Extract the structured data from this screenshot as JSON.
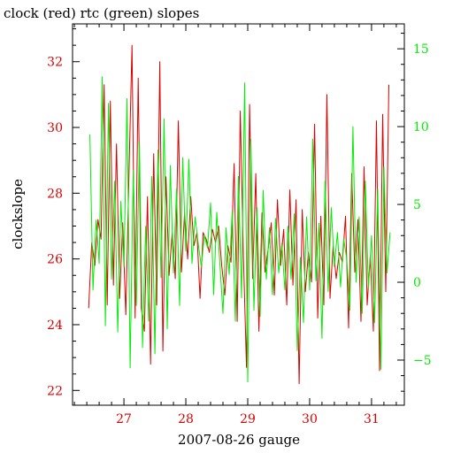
{
  "chart_data": {
    "type": "line",
    "title": "clock (red) rtc (green) slopes",
    "xlabel": "2007-08-26 gauge",
    "ylabel": "clockslope",
    "x_ticks": [
      27,
      28,
      29,
      30,
      31
    ],
    "x_tick_labels": [
      "27",
      "28",
      "29",
      "30",
      "31"
    ],
    "xlim": [
      26.17,
      31.53
    ],
    "ylim_left": [
      21.55,
      33.15
    ],
    "yticks_left": [
      22,
      24,
      26,
      28,
      30,
      32
    ],
    "ytick_labels_left": [
      "22",
      "24",
      "26",
      "28",
      "30",
      "32"
    ],
    "ylim_right": [
      -7.9,
      16.6
    ],
    "yticks_right": [
      -5,
      0,
      5,
      10,
      15
    ],
    "ytick_labels_right": [
      "−5",
      "0",
      "5",
      "10",
      "15"
    ],
    "grid": false,
    "legend": "none",
    "colors": {
      "clock": "#dd0000",
      "rtc": "#00ee00",
      "axis": "#000000",
      "left_ticks": "#dd0000",
      "right_ticks": "#00ee00"
    },
    "series": [
      {
        "axis": "left",
        "color": "#dd0000",
        "x": [
          26.43,
          26.48,
          26.53,
          26.58,
          26.63,
          26.68,
          26.73,
          26.78,
          26.83,
          26.88,
          26.93,
          26.98,
          27.03,
          27.08,
          27.13,
          27.18,
          27.23,
          27.28,
          27.33,
          27.38,
          27.43,
          27.48,
          27.53,
          27.58,
          27.63,
          27.68,
          27.73,
          27.78,
          27.83,
          27.88,
          27.93,
          27.98,
          28.03,
          28.08,
          28.13,
          28.18,
          28.23,
          28.28,
          28.33,
          28.38,
          28.43,
          28.48,
          28.53,
          28.58,
          28.63,
          28.68,
          28.73,
          28.78,
          28.83,
          28.88,
          28.93,
          28.98,
          29.03,
          29.08,
          29.13,
          29.18,
          29.23,
          29.28,
          29.33,
          29.38,
          29.43,
          29.48,
          29.53,
          29.58,
          29.63,
          29.68,
          29.73,
          29.78,
          29.83,
          29.88,
          29.93,
          29.98,
          30.03,
          30.08,
          30.13,
          30.18,
          30.23,
          30.28,
          30.33,
          30.38,
          30.43,
          30.48,
          30.53,
          30.58,
          30.63,
          30.68,
          30.73,
          30.78,
          30.83,
          30.88,
          30.93,
          30.98,
          31.03,
          31.08,
          31.13,
          31.18,
          31.23,
          31.28
        ],
        "y": [
          24.5,
          26.5,
          25.8,
          27.2,
          26.6,
          31.3,
          24.6,
          30.8,
          25.2,
          29.5,
          24.8,
          27.1,
          24.3,
          28.5,
          32.5,
          24.2,
          31.5,
          24.5,
          23.8,
          27.9,
          22.8,
          29.2,
          24.6,
          32.0,
          23.2,
          28.5,
          25.5,
          26.8,
          25.4,
          30.2,
          25.6,
          27.4,
          26.0,
          27.9,
          26.4,
          26.8,
          24.8,
          26.8,
          26.6,
          26.2,
          26.9,
          26.5,
          27.0,
          25.8,
          24.9,
          26.4,
          25.9,
          28.9,
          24.1,
          30.5,
          26.1,
          22.7,
          30.7,
          25.4,
          28.6,
          23.8,
          27.4,
          25.6,
          26.3,
          27.1,
          24.9,
          27.8,
          25.8,
          26.9,
          24.6,
          28.1,
          25.2,
          27.8,
          22.2,
          27.5,
          25.0,
          26.2,
          25.3,
          30.1,
          24.2,
          27.3,
          24.6,
          31.0,
          24.8,
          26.4,
          25.4,
          26.2,
          25.9,
          27.3,
          23.9,
          28.6,
          25.6,
          27.2,
          24.1,
          28.8,
          24.6,
          26.1,
          23.8,
          30.2,
          22.6,
          30.4,
          25.0,
          31.3
        ]
      },
      {
        "axis": "right",
        "color": "#00ee00",
        "x": [
          26.45,
          26.5,
          26.55,
          26.6,
          26.65,
          26.7,
          26.75,
          26.8,
          26.85,
          26.9,
          26.95,
          27.0,
          27.05,
          27.1,
          27.15,
          27.2,
          27.25,
          27.3,
          27.35,
          27.4,
          27.45,
          27.5,
          27.55,
          27.6,
          27.65,
          27.7,
          27.75,
          27.8,
          27.85,
          27.9,
          27.95,
          28.0,
          28.05,
          28.1,
          28.15,
          28.2,
          28.25,
          28.3,
          28.35,
          28.4,
          28.45,
          28.5,
          28.55,
          28.6,
          28.65,
          28.7,
          28.75,
          28.8,
          28.85,
          28.9,
          28.95,
          29.0,
          29.05,
          29.1,
          29.15,
          29.2,
          29.25,
          29.3,
          29.35,
          29.4,
          29.45,
          29.5,
          29.55,
          29.6,
          29.65,
          29.7,
          29.75,
          29.8,
          29.85,
          29.9,
          29.95,
          30.0,
          30.05,
          30.1,
          30.15,
          30.2,
          30.25,
          30.3,
          30.35,
          30.4,
          30.45,
          30.5,
          30.55,
          30.6,
          30.65,
          30.7,
          30.75,
          30.8,
          30.85,
          30.9,
          30.95,
          31.0,
          31.05,
          31.1,
          31.15,
          31.2,
          31.25,
          31.3
        ],
        "y": [
          9.5,
          -0.5,
          4.0,
          1.2,
          13.2,
          -2.8,
          11.5,
          0.2,
          6.5,
          -3.2,
          5.2,
          1.0,
          11.8,
          -5.5,
          7.2,
          -1.5,
          9.0,
          -4.2,
          3.6,
          -2.5,
          6.8,
          -4.6,
          8.5,
          0.3,
          10.5,
          -3.0,
          7.5,
          0.6,
          6.0,
          -1.5,
          8.0,
          2.0,
          7.9,
          1.2,
          4.2,
          2.5,
          1.0,
          3.0,
          2.2,
          5.1,
          -0.8,
          4.5,
          1.2,
          -2.0,
          3.5,
          0.5,
          4.6,
          -2.5,
          6.8,
          -1.0,
          12.8,
          -6.4,
          9.2,
          -1.8,
          4.8,
          -2.2,
          5.9,
          0.2,
          3.5,
          -0.8,
          4.1,
          0.6,
          2.5,
          -0.5,
          3.6,
          0.2,
          4.4,
          -4.4,
          1.6,
          -2.6,
          4.2,
          -0.5,
          9.2,
          0.1,
          3.8,
          -3.6,
          6.5,
          -0.6,
          4.8,
          1.0,
          3.2,
          -0.3,
          2.8,
          1.5,
          -1.8,
          10.0,
          0.0,
          4.2,
          -2.0,
          6.5,
          -0.4,
          3.0,
          -2.6,
          6.0,
          -5.6,
          7.4,
          0.6,
          3.2
        ]
      }
    ]
  }
}
